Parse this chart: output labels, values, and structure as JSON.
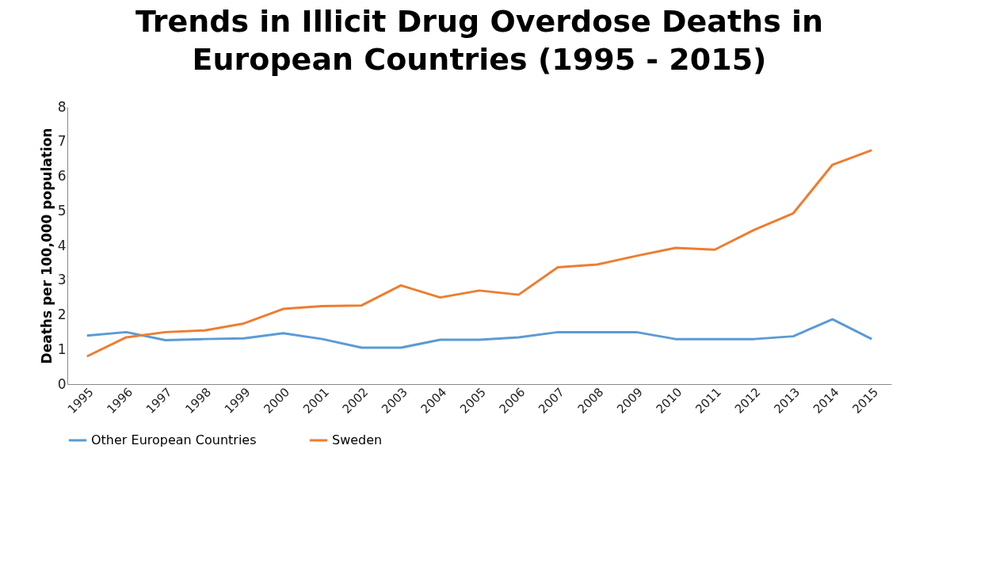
{
  "chart_data": {
    "type": "line",
    "title": [
      "Trends in Illicit Drug Overdose Deaths in",
      "European Countries (1995 - 2015)"
    ],
    "ylabel": "Deaths per 100,000 population",
    "categories": [
      "1995",
      "1996",
      "1997",
      "1998",
      "1999",
      "2000",
      "2001",
      "2002",
      "2003",
      "2004",
      "2005",
      "2006",
      "2007",
      "2008",
      "2009",
      "2010",
      "2011",
      "2012",
      "2013",
      "2014",
      "2015"
    ],
    "series": [
      {
        "name": "Other European Countries",
        "color": "#5b9bd5",
        "values": [
          1.4,
          1.5,
          1.27,
          1.3,
          1.32,
          1.47,
          1.3,
          1.05,
          1.05,
          1.28,
          1.28,
          1.35,
          1.5,
          1.5,
          1.5,
          1.3,
          1.3,
          1.3,
          1.38,
          1.87,
          1.3
        ]
      },
      {
        "name": "Sweden",
        "color": "#ed7d31",
        "values": [
          0.8,
          1.35,
          1.5,
          1.55,
          1.75,
          2.17,
          2.25,
          2.27,
          2.85,
          2.5,
          2.7,
          2.58,
          3.37,
          3.45,
          3.7,
          3.93,
          3.88,
          4.45,
          4.93,
          6.33,
          6.75
        ]
      }
    ],
    "ylim": [
      0,
      8
    ],
    "yticks": [
      0,
      1,
      2,
      3,
      4,
      5,
      6,
      7,
      8
    ],
    "grid": false,
    "legend": "bottom",
    "marker": "none",
    "line_style": "solid"
  }
}
